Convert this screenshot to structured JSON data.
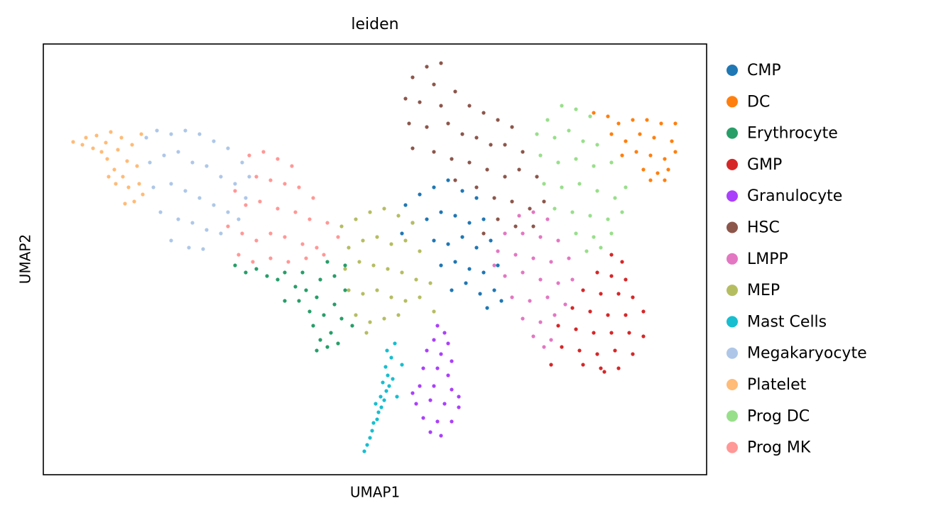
{
  "chart_data": {
    "type": "scatter",
    "title": "leiden",
    "x_label": "UMAP1",
    "y_label": "UMAP2",
    "xlim": [
      0,
      93.4
    ],
    "ylim": [
      0,
      60.7
    ],
    "legend": "right",
    "point_radius": 2.6,
    "series": [
      {
        "name": "CMP",
        "color": "#1f77b4",
        "x": [
          51,
          53,
          55,
          57,
          59,
          61,
          52,
          54,
          56,
          58,
          60,
          62,
          55,
          57,
          59,
          61,
          63,
          56,
          58,
          60,
          62,
          64,
          57.5,
          59.5,
          61.5,
          63.5,
          62.5,
          50.5,
          64.5
        ],
        "y": [
          38,
          39.5,
          40.5,
          41.5,
          40,
          39,
          35.5,
          36,
          37,
          36.5,
          35.5,
          36,
          33,
          32.5,
          33.5,
          32,
          33,
          29.5,
          30,
          29,
          28.5,
          29.5,
          26,
          27,
          25.5,
          26,
          23.5,
          34,
          24.5
        ]
      },
      {
        "name": "DC",
        "color": "#ff7f0e",
        "x": [
          77.5,
          79.5,
          81,
          83,
          85,
          87,
          89,
          80,
          82,
          84,
          86,
          88.5,
          81.5,
          83.5,
          85.5,
          87.5,
          89,
          84.5,
          86.5,
          88,
          85.5,
          87.5
        ],
        "y": [
          51,
          50.5,
          49.5,
          50,
          50,
          49.5,
          49.5,
          48,
          47,
          48,
          47.5,
          47,
          45,
          45.5,
          45,
          44.5,
          45.5,
          43,
          42.5,
          43,
          41.5,
          41.5
        ]
      },
      {
        "name": "Erythrocyte",
        "color": "#279e68",
        "x": [
          27,
          28.5,
          30,
          31.5,
          33,
          34,
          35.5,
          36,
          37,
          37.5,
          38.5,
          38,
          39.5,
          39,
          40.5,
          40,
          41.5,
          42,
          41,
          42.5,
          41,
          40,
          42.5,
          39,
          36.5,
          43.5,
          38.5,
          34
        ],
        "y": [
          29.5,
          28.5,
          29,
          28,
          27.5,
          28.5,
          26.5,
          24.5,
          26,
          23,
          25,
          21,
          22.5,
          19,
          20,
          18,
          18.5,
          22,
          24,
          26,
          28,
          30,
          29.5,
          27.5,
          28.5,
          21,
          17.5,
          24.5
        ]
      },
      {
        "name": "GMP",
        "color": "#d62728",
        "x": [
          80,
          81.5,
          78,
          80,
          82,
          76,
          78.5,
          81,
          83,
          84.5,
          74.5,
          77,
          79.5,
          82,
          72.5,
          75,
          77.5,
          80,
          82.5,
          84.5,
          73,
          75.5,
          78,
          80.5,
          83,
          76,
          78.5,
          81,
          71.5,
          79
        ],
        "y": [
          31,
          30,
          28.5,
          28,
          27.5,
          26,
          25.5,
          25.5,
          25,
          23,
          23.5,
          23,
          22.5,
          22.5,
          21,
          20.5,
          20,
          20,
          20,
          19.5,
          18,
          17.5,
          17,
          17.5,
          17,
          15.5,
          15,
          15,
          15.5,
          14.5
        ]
      },
      {
        "name": "Granulocyte",
        "color": "#aa40fc",
        "x": [
          55.5,
          56.5,
          55,
          57,
          54,
          56,
          57.5,
          53.5,
          55.5,
          57,
          53,
          55,
          57.5,
          52.5,
          54.5,
          56.5,
          58.5,
          53.5,
          55.5,
          57.5,
          54.5,
          56,
          52,
          58.5
        ],
        "y": [
          21,
          20,
          19,
          18.5,
          17.5,
          17,
          16,
          15,
          15,
          14,
          12.5,
          12.5,
          12,
          10,
          10.5,
          10,
          9.5,
          8,
          7.5,
          7.5,
          6,
          5.5,
          11.5,
          11
        ]
      },
      {
        "name": "HSC",
        "color": "#8c564b",
        "x": [
          52,
          54,
          56,
          55,
          51,
          53,
          56,
          58,
          60,
          62,
          64,
          66,
          51.5,
          54,
          57,
          59,
          61,
          63,
          65,
          67.5,
          52,
          55,
          57.5,
          60,
          62.5,
          65,
          67,
          69.5,
          58,
          61,
          63.5,
          66,
          68.5,
          64,
          66.5,
          69,
          70.5,
          62
        ],
        "y": [
          56,
          57.5,
          58,
          55,
          53,
          52.5,
          52,
          54,
          52,
          51,
          50,
          49,
          49.5,
          49,
          49.5,
          48,
          47.5,
          46.5,
          46.5,
          45.5,
          46,
          45.5,
          44.5,
          44,
          43,
          42,
          43,
          42,
          41.5,
          40.5,
          39,
          38.5,
          37.5,
          36,
          35,
          35,
          38.5,
          34
        ]
      },
      {
        "name": "LMPP",
        "color": "#e377c2",
        "x": [
          67,
          69,
          71,
          65,
          67.5,
          70,
          72.5,
          64,
          66.5,
          69,
          71.5,
          74,
          65,
          67.5,
          70,
          72.5,
          74.5,
          66,
          68.5,
          71,
          73.5,
          67.5,
          70,
          72,
          69,
          71.5,
          70.5,
          63.5
        ],
        "y": [
          36.5,
          37,
          36,
          34,
          34,
          33.5,
          33,
          31.5,
          31,
          30.5,
          30,
          30.5,
          28,
          28.5,
          27.5,
          27,
          27.5,
          25,
          24.5,
          25,
          24,
          22,
          21.5,
          22.5,
          19.5,
          19,
          18,
          29.5
        ]
      },
      {
        "name": "MEP",
        "color": "#b5bd61",
        "x": [
          42,
          44,
          46,
          48,
          50,
          52,
          43,
          45,
          47,
          49,
          51,
          53,
          42.5,
          44.5,
          46.5,
          48.5,
          50.5,
          52.5,
          54.5,
          43,
          45,
          47,
          49,
          51,
          53,
          44,
          46,
          48,
          50,
          55,
          45.5
        ],
        "y": [
          35,
          36,
          37,
          37.5,
          36.5,
          35.5,
          32,
          33,
          33.5,
          32.5,
          33,
          31.5,
          29,
          30,
          29.5,
          29,
          28.5,
          27.5,
          27,
          26,
          25.5,
          26,
          25,
          24.5,
          25,
          22.5,
          21.5,
          22,
          22.5,
          23,
          20
        ]
      },
      {
        "name": "Mast Cells",
        "color": "#17becf",
        "x": [
          45.2,
          45.6,
          46,
          46.3,
          46.5,
          47,
          47.2,
          47.6,
          48,
          47.5,
          48.3,
          48.7,
          47.8,
          48.5,
          49.2,
          48.2,
          49,
          48.4,
          49.5,
          50.5,
          46.8,
          49.8
        ],
        "y": [
          3.3,
          4.2,
          5.2,
          6.2,
          7.3,
          7.8,
          8.8,
          9.5,
          10.5,
          11,
          11.8,
          12.5,
          13,
          14,
          13.5,
          15.2,
          16.5,
          17.5,
          18.5,
          15.5,
          10,
          11
        ]
      },
      {
        "name": "Megakaryocyte",
        "color": "#aec7e8",
        "x": [
          14.5,
          16,
          18,
          20,
          22,
          24,
          26,
          28,
          15,
          17,
          19,
          21,
          23,
          25,
          27,
          28.5,
          15.5,
          18,
          20,
          22,
          24,
          26,
          16.5,
          19,
          21,
          23,
          25,
          18,
          20.5,
          22.5,
          27.5,
          29
        ],
        "y": [
          47.5,
          48.5,
          48,
          48.5,
          48,
          47,
          46,
          44,
          44,
          45,
          45.5,
          44,
          43.5,
          42,
          41,
          39,
          40.5,
          41,
          40,
          39,
          38,
          37,
          37,
          36,
          35.5,
          34.5,
          34,
          33,
          32,
          31.8,
          36,
          42
        ]
      },
      {
        "name": "Platelet",
        "color": "#ffbb78",
        "x": [
          4.2,
          5.5,
          6,
          7,
          7.5,
          8.2,
          8.8,
          9,
          9.5,
          10,
          10.5,
          11,
          11.2,
          11.8,
          12,
          12.5,
          12.8,
          13.2,
          13.5,
          13.8,
          14,
          10.2,
          11.5,
          9.2
        ],
        "y": [
          46.9,
          46.5,
          47.5,
          46,
          47.8,
          45.5,
          46.8,
          44.5,
          48.3,
          43,
          45.8,
          47.5,
          42,
          44.2,
          40.5,
          46.5,
          38.5,
          43.5,
          41,
          48,
          39.5,
          41,
          38.2,
          42
        ]
      },
      {
        "name": "Prog DC",
        "color": "#98df8a",
        "x": [
          71,
          73,
          75,
          77,
          69.5,
          72,
          74,
          76,
          78,
          70,
          72.5,
          75,
          77.5,
          80,
          82,
          70.5,
          73,
          75.5,
          78,
          80.5,
          72,
          74.5,
          77,
          79.5,
          81.5,
          75,
          77.5,
          80,
          76.5,
          78.5
        ],
        "y": [
          50,
          52,
          51.5,
          50.5,
          48,
          47.5,
          48.5,
          47,
          46.5,
          45,
          44,
          44.5,
          43.5,
          44,
          40.5,
          41,
          40.5,
          41,
          40,
          39,
          37.5,
          37,
          36.5,
          36,
          37,
          34,
          33.5,
          34,
          31.5,
          32
        ]
      },
      {
        "name": "Prog MK",
        "color": "#ff9896",
        "x": [
          29,
          31,
          33,
          35,
          30,
          32,
          34,
          36,
          38,
          27,
          28.5,
          30.5,
          33,
          35.5,
          37.5,
          40,
          41.5,
          26,
          28,
          30,
          32,
          34,
          36.5,
          38.5,
          27.5,
          29.5,
          32,
          34.5,
          37,
          39.5
        ],
        "y": [
          45,
          45.5,
          44.5,
          43.5,
          42,
          41.5,
          41,
          40.5,
          39,
          40,
          38,
          38.5,
          37.5,
          37,
          36,
          35.5,
          33.5,
          35,
          34,
          33,
          34,
          33.5,
          32.5,
          32,
          31,
          30,
          30.5,
          30,
          30.5,
          31
        ]
      }
    ]
  }
}
